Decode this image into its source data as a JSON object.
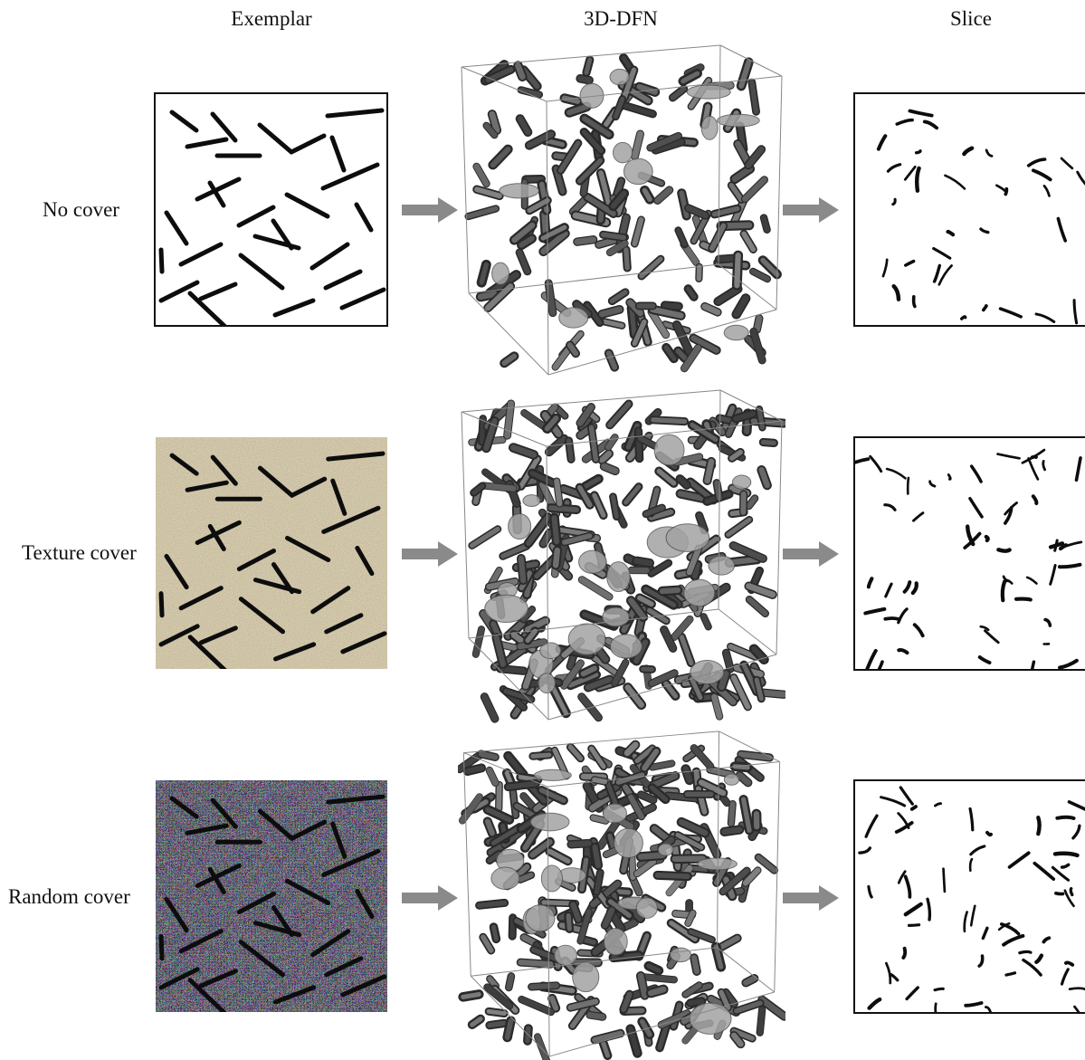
{
  "columns": {
    "exemplar": "Exemplar",
    "dfn3d": "3D-DFN",
    "slice": "Slice"
  },
  "rows": [
    {
      "label": "No cover",
      "cover": "none"
    },
    {
      "label": "Texture cover",
      "cover": "texture"
    },
    {
      "label": "Random cover",
      "cover": "random"
    }
  ],
  "colors": {
    "fracture": "#0d0d0d",
    "arrow": "#8a8a8a",
    "texture_base": "#c9bd9d",
    "dfn_body": "#6e6e6e"
  },
  "icons": {
    "arrow": "right-arrow-icon"
  }
}
